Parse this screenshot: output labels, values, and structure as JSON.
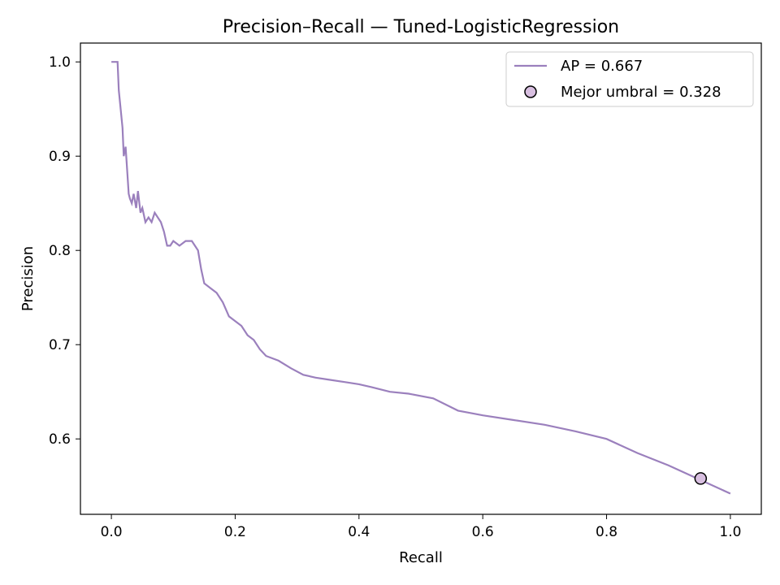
{
  "chart_data": {
    "type": "line",
    "title": "Precision–Recall — Tuned-LogisticRegression",
    "xlabel": "Recall",
    "ylabel": "Precision",
    "xlim": [
      -0.05,
      1.05
    ],
    "ylim": [
      0.52,
      1.02
    ],
    "xticks": [
      0.0,
      0.2,
      0.4,
      0.6,
      0.8,
      1.0
    ],
    "xtick_labels": [
      "0.0",
      "0.2",
      "0.4",
      "0.6",
      "0.8",
      "1.0"
    ],
    "yticks": [
      0.6,
      0.7,
      0.8,
      0.9,
      1.0
    ],
    "ytick_labels": [
      "0.6",
      "0.7",
      "0.8",
      "0.9",
      "1.0"
    ],
    "grid": false,
    "legend_position": "top-right",
    "series": [
      {
        "name": "AP = 0.667",
        "color": "#9b80bd",
        "x": [
          0.0,
          0.01,
          0.012,
          0.015,
          0.018,
          0.02,
          0.023,
          0.026,
          0.028,
          0.03,
          0.033,
          0.036,
          0.04,
          0.043,
          0.047,
          0.05,
          0.055,
          0.06,
          0.065,
          0.07,
          0.075,
          0.08,
          0.085,
          0.09,
          0.095,
          0.1,
          0.11,
          0.12,
          0.13,
          0.14,
          0.145,
          0.15,
          0.16,
          0.17,
          0.18,
          0.19,
          0.2,
          0.21,
          0.22,
          0.23,
          0.24,
          0.25,
          0.27,
          0.29,
          0.31,
          0.33,
          0.35,
          0.38,
          0.4,
          0.42,
          0.45,
          0.48,
          0.52,
          0.56,
          0.6,
          0.65,
          0.7,
          0.75,
          0.8,
          0.85,
          0.9,
          0.95,
          1.0
        ],
        "y": [
          1.0,
          1.0,
          0.97,
          0.95,
          0.93,
          0.9,
          0.91,
          0.88,
          0.86,
          0.855,
          0.85,
          0.86,
          0.845,
          0.863,
          0.84,
          0.845,
          0.83,
          0.835,
          0.83,
          0.84,
          0.835,
          0.83,
          0.82,
          0.805,
          0.805,
          0.81,
          0.805,
          0.81,
          0.81,
          0.8,
          0.78,
          0.765,
          0.76,
          0.755,
          0.745,
          0.73,
          0.725,
          0.72,
          0.71,
          0.705,
          0.695,
          0.688,
          0.683,
          0.675,
          0.668,
          0.665,
          0.663,
          0.66,
          0.658,
          0.655,
          0.65,
          0.648,
          0.643,
          0.63,
          0.625,
          0.62,
          0.615,
          0.608,
          0.6,
          0.585,
          0.572,
          0.557,
          0.542
        ]
      }
    ],
    "highlight_point": {
      "label": "Mejor umbral = 0.328",
      "x": 0.952,
      "y": 0.558,
      "fill": "#d8bfe0",
      "edge": "#000000"
    }
  }
}
